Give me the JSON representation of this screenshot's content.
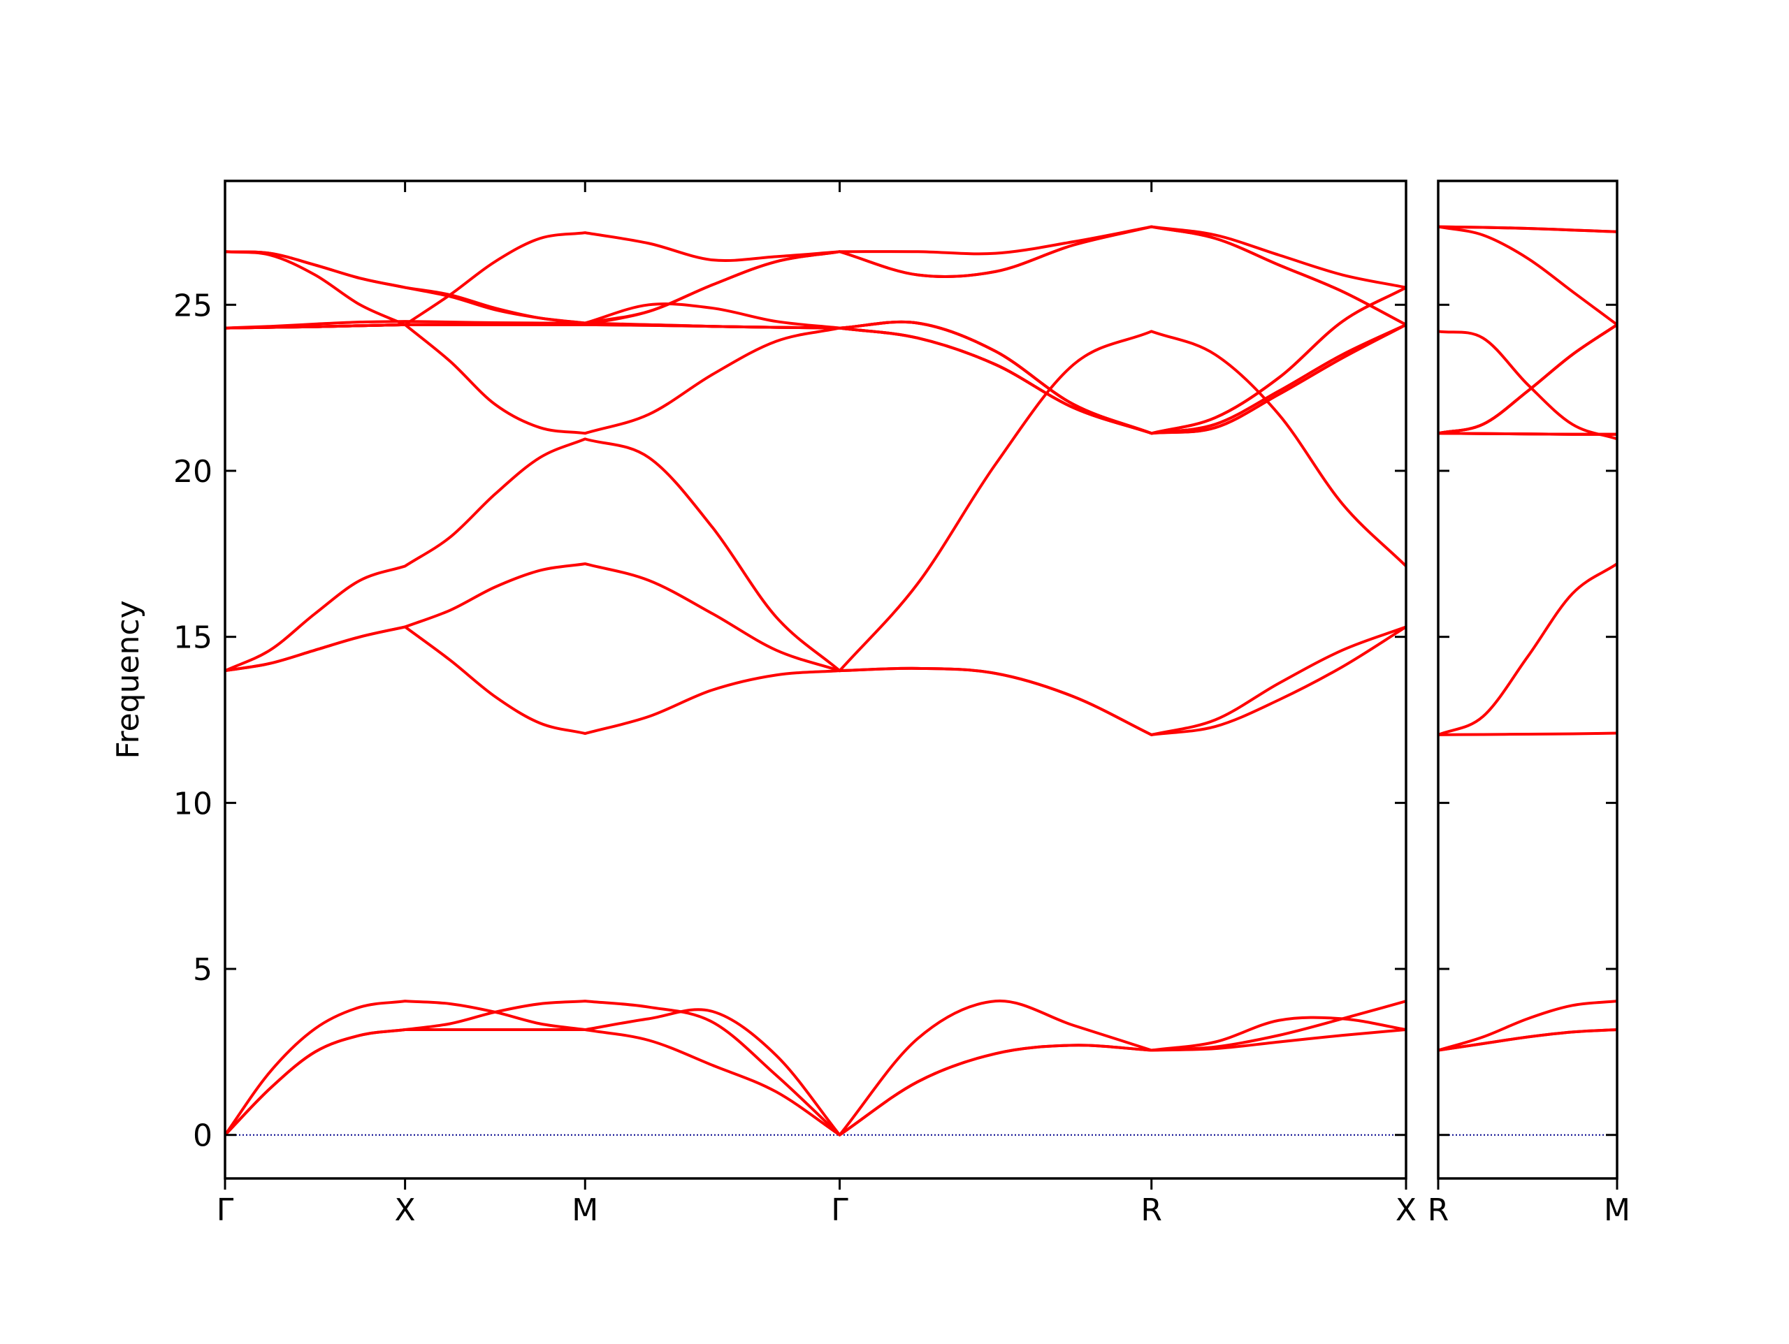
{
  "chart_data": [
    {
      "type": "line",
      "ylabel": "Frequency",
      "x": [
        0,
        0.25,
        0.5,
        0.75,
        1,
        1.25,
        1.5,
        1.75,
        2,
        2.354,
        2.707,
        3.061,
        3.414,
        3.847,
        4.28,
        4.713,
        5.146,
        5.5,
        5.853,
        6.207,
        6.56
      ],
      "xlim": [
        0,
        6.56
      ],
      "xticks": [
        {
          "value": 0,
          "label": "Γ"
        },
        {
          "value": 1,
          "label": "X"
        },
        {
          "value": 2,
          "label": "M"
        },
        {
          "value": 3.414,
          "label": "Γ"
        },
        {
          "value": 5.146,
          "label": "R"
        },
        {
          "value": 6.56,
          "label": "X"
        }
      ],
      "ylim": [
        -1.31,
        28.73
      ],
      "yticks": [
        0,
        5,
        10,
        15,
        20,
        25
      ],
      "ytick_labels": true,
      "zero_line": {
        "value": 0,
        "color": "#00008b"
      },
      "series": [
        {
          "color": "#ff0000",
          "values": [
            0,
            1.4,
            2.5,
            3.0,
            3.17,
            3.17,
            3.17,
            3.17,
            3.17,
            2.85,
            2.1,
            1.3,
            0,
            1.6,
            2.45,
            2.7,
            2.55,
            2.6,
            2.8,
            3.0,
            3.17
          ]
        },
        {
          "color": "#ff0000",
          "values": [
            0,
            1.4,
            2.5,
            3.0,
            3.17,
            3.35,
            3.7,
            3.95,
            4.03,
            3.85,
            3.4,
            1.8,
            0,
            1.6,
            2.45,
            2.7,
            2.55,
            2.8,
            3.45,
            3.5,
            3.17
          ]
        },
        {
          "color": "#ff0000",
          "values": [
            0,
            1.9,
            3.2,
            3.85,
            4.03,
            3.95,
            3.7,
            3.35,
            3.17,
            3.5,
            3.72,
            2.4,
            0,
            2.9,
            4.03,
            3.3,
            2.55,
            2.65,
            3.0,
            3.5,
            4.03
          ]
        },
        {
          "color": "#ff0000",
          "values": [
            13.98,
            14.2,
            14.6,
            15.0,
            15.3,
            14.3,
            13.2,
            12.4,
            12.09,
            12.6,
            13.4,
            13.85,
            13.98,
            14.05,
            13.9,
            13.2,
            12.05,
            12.5,
            13.6,
            14.6,
            15.3
          ]
        },
        {
          "color": "#ff0000",
          "values": [
            13.98,
            14.2,
            14.6,
            15.0,
            15.3,
            15.8,
            16.5,
            17.0,
            17.2,
            16.7,
            15.7,
            14.6,
            13.98,
            14.05,
            13.9,
            13.2,
            12.05,
            12.3,
            13.1,
            14.1,
            15.3
          ]
        },
        {
          "color": "#ff0000",
          "values": [
            13.98,
            14.6,
            15.7,
            16.7,
            17.13,
            18.0,
            19.3,
            20.4,
            20.96,
            20.4,
            18.3,
            15.6,
            13.98,
            16.6,
            20.2,
            23.2,
            24.2,
            23.5,
            21.7,
            19.0,
            17.13
          ]
        },
        {
          "color": "#ff0000",
          "values": [
            24.3,
            24.32,
            24.34,
            24.37,
            24.4,
            24.4,
            24.4,
            24.4,
            24.4,
            24.38,
            24.35,
            24.32,
            24.3,
            24.0,
            23.2,
            21.9,
            21.13,
            21.4,
            22.4,
            23.5,
            24.4
          ]
        },
        {
          "color": "#ff0000",
          "values": [
            24.3,
            24.35,
            24.42,
            24.48,
            24.5,
            24.48,
            24.46,
            24.45,
            24.45,
            25.0,
            24.9,
            24.5,
            24.3,
            24.45,
            23.6,
            22.0,
            21.13,
            21.3,
            22.3,
            23.4,
            24.4
          ]
        },
        {
          "color": "#ff0000",
          "values": [
            24.3,
            24.32,
            24.34,
            24.37,
            24.4,
            23.3,
            22.0,
            21.3,
            21.13,
            21.7,
            22.9,
            23.9,
            24.3,
            24.0,
            23.2,
            21.9,
            21.13,
            21.6,
            22.8,
            24.5,
            25.52
          ]
        },
        {
          "color": "#ff0000",
          "values": [
            24.3,
            24.32,
            24.34,
            24.37,
            24.4,
            25.3,
            26.3,
            27.0,
            27.17,
            26.85,
            26.35,
            26.45,
            26.6,
            26.6,
            26.55,
            26.9,
            27.35,
            27.1,
            26.5,
            25.9,
            25.52
          ]
        },
        {
          "color": "#ff0000",
          "values": [
            26.6,
            26.5,
            25.9,
            25.0,
            24.4,
            24.4,
            24.4,
            24.4,
            24.4,
            24.8,
            25.6,
            26.3,
            26.6,
            25.9,
            26.0,
            26.8,
            27.35,
            27.0,
            26.2,
            25.4,
            24.4
          ]
        },
        {
          "color": "#ff0000",
          "values": [
            26.6,
            26.55,
            26.2,
            25.8,
            25.52,
            25.3,
            24.9,
            24.6,
            24.45,
            24.8,
            25.6,
            26.3,
            26.6,
            25.9,
            26.0,
            26.8,
            27.35,
            27.0,
            26.2,
            25.4,
            24.4
          ]
        },
        {
          "color": "#ff0000",
          "values": [
            26.6,
            26.55,
            26.2,
            25.8,
            25.52,
            25.25,
            24.85,
            24.6,
            24.45,
            24.4,
            24.35,
            24.32,
            24.3,
            24.45,
            23.6,
            22.0,
            21.13,
            21.6,
            22.8,
            24.5,
            25.52
          ]
        },
        {
          "color": "#ff0000",
          "values": [
            24.3,
            24.32,
            24.34,
            24.37,
            24.4,
            24.4,
            24.4,
            24.4,
            24.4,
            24.38,
            24.35,
            24.32,
            24.3,
            24.0,
            23.2,
            21.9,
            21.13,
            21.4,
            22.4,
            23.5,
            24.4
          ]
        },
        {
          "color": "#ff0000",
          "values": [
            24.3,
            24.32,
            24.34,
            24.37,
            24.4,
            24.4,
            24.4,
            24.4,
            24.4,
            24.4,
            24.35,
            24.32,
            24.3,
            24.45,
            23.6,
            22.0,
            21.13,
            21.3,
            22.3,
            23.4,
            24.4
          ]
        }
      ]
    },
    {
      "type": "line",
      "x": [
        0,
        0.25,
        0.5,
        0.75,
        1
      ],
      "xlim": [
        0,
        1
      ],
      "xticks": [
        {
          "value": 0,
          "label": "R"
        },
        {
          "value": 1,
          "label": "M"
        }
      ],
      "ylim": [
        -1.31,
        28.73
      ],
      "yticks": [
        0,
        5,
        10,
        15,
        20,
        25
      ],
      "ytick_labels": false,
      "zero_line": {
        "value": 0,
        "color": "#00008b"
      },
      "series": [
        {
          "color": "#ff0000",
          "values": [
            2.55,
            2.75,
            2.95,
            3.1,
            3.17
          ]
        },
        {
          "color": "#ff0000",
          "values": [
            2.55,
            2.75,
            2.95,
            3.1,
            3.17
          ]
        },
        {
          "color": "#ff0000",
          "values": [
            2.55,
            2.95,
            3.5,
            3.9,
            4.03
          ]
        },
        {
          "color": "#ff0000",
          "values": [
            12.05,
            12.06,
            12.07,
            12.08,
            12.1
          ]
        },
        {
          "color": "#ff0000",
          "values": [
            12.05,
            12.6,
            14.4,
            16.3,
            17.2
          ]
        },
        {
          "color": "#ff0000",
          "values": [
            24.2,
            24.0,
            22.6,
            21.4,
            20.96
          ]
        },
        {
          "color": "#ff0000",
          "values": [
            21.13,
            21.4,
            22.4,
            23.5,
            24.4
          ]
        },
        {
          "color": "#ff0000",
          "values": [
            21.13,
            21.12,
            21.11,
            21.1,
            21.1
          ]
        },
        {
          "color": "#ff0000",
          "values": [
            21.13,
            21.4,
            22.4,
            23.5,
            24.4
          ]
        },
        {
          "color": "#ff0000",
          "values": [
            27.35,
            27.33,
            27.3,
            27.25,
            27.2
          ]
        },
        {
          "color": "#ff0000",
          "values": [
            27.35,
            27.1,
            26.4,
            25.4,
            24.4
          ]
        },
        {
          "color": "#ff0000",
          "values": [
            27.35,
            27.33,
            27.3,
            27.25,
            27.2
          ]
        },
        {
          "color": "#ff0000",
          "values": [
            21.13,
            21.12,
            21.11,
            21.1,
            21.1
          ]
        },
        {
          "color": "#ff0000",
          "values": [
            21.13,
            21.12,
            21.11,
            21.1,
            21.1
          ]
        },
        {
          "color": "#ff0000",
          "values": [
            21.13,
            21.4,
            22.4,
            23.5,
            24.4
          ]
        }
      ]
    }
  ]
}
